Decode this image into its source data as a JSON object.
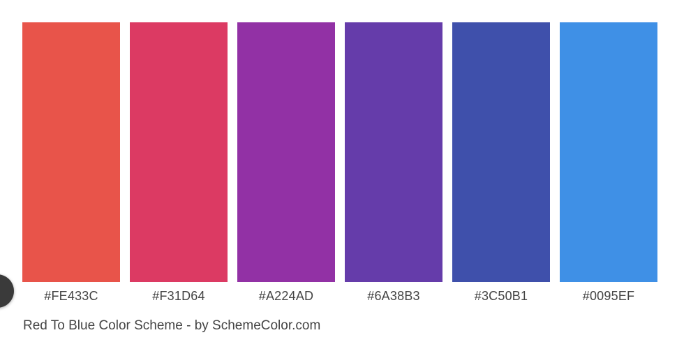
{
  "palette": {
    "swatches": [
      {
        "hex": "#FE433C",
        "color": "#E8544A"
      },
      {
        "hex": "#F31D64",
        "color": "#DC3A63"
      },
      {
        "hex": "#A224AD",
        "color": "#9231A5"
      },
      {
        "hex": "#6A38B3",
        "color": "#653CAA"
      },
      {
        "hex": "#3C50B1",
        "color": "#3F50AB"
      },
      {
        "hex": "#0095EF",
        "color": "#3F90E6"
      }
    ]
  },
  "caption": "Red To Blue Color Scheme - by SchemeColor.com"
}
